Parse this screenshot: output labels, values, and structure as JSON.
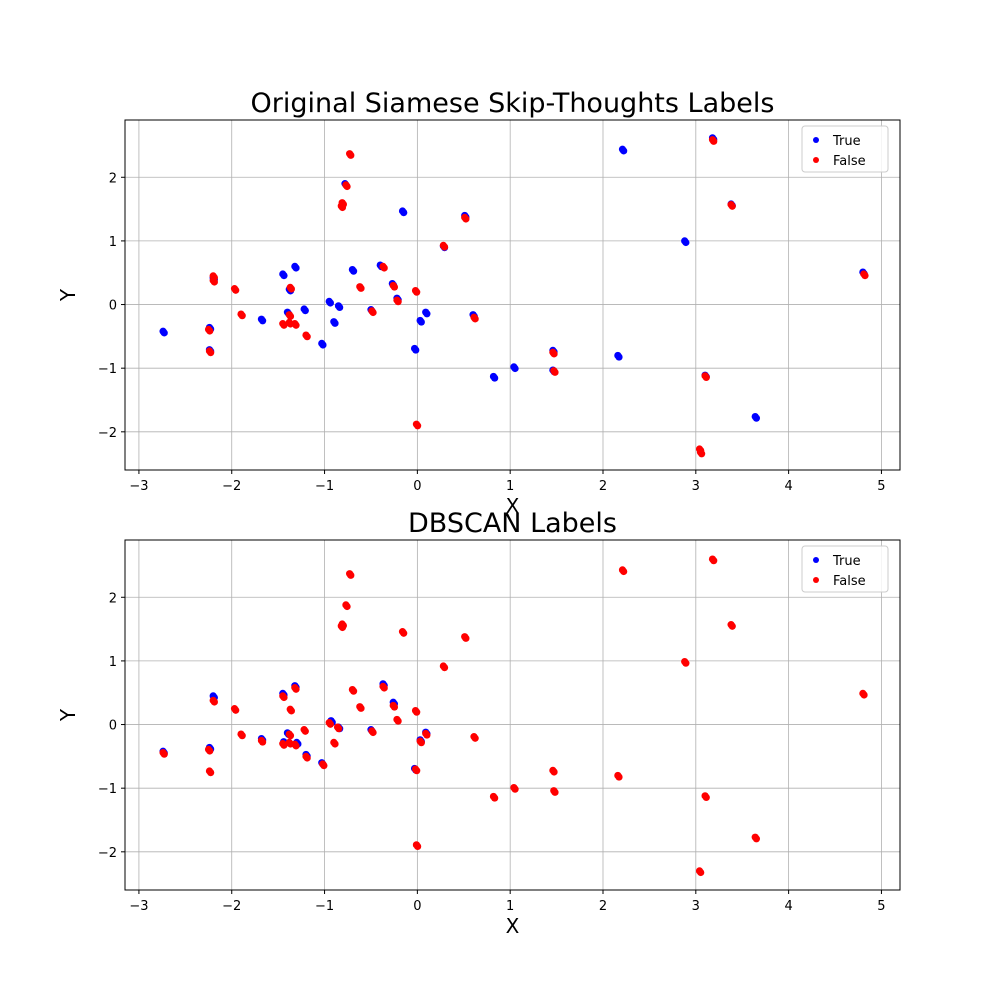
{
  "colors": {
    "true": "#0000ff",
    "false": "#ff0000",
    "grid": "#b0b0b0"
  },
  "chart_data": [
    {
      "type": "scatter",
      "title": "Original Siamese Skip-Thoughts Labels",
      "xlabel": "X",
      "ylabel": "Y",
      "xlim": [
        -3.15,
        5.2
      ],
      "ylim": [
        -2.6,
        2.9
      ],
      "xticks": [
        -3,
        -2,
        -1,
        0,
        1,
        2,
        3,
        4,
        5
      ],
      "yticks": [
        -2,
        -1,
        0,
        1,
        2
      ],
      "grid": true,
      "legend_position": "top-right",
      "series": [
        {
          "name": "True",
          "color": "#0000ff",
          "points": [
            [
              -2.74,
              -0.42
            ],
            [
              -2.24,
              -0.36
            ],
            [
              -2.24,
              -0.71
            ],
            [
              -2.2,
              0.42
            ],
            [
              -1.68,
              -0.23
            ],
            [
              -1.45,
              0.48
            ],
            [
              -1.4,
              -0.12
            ],
            [
              -1.38,
              0.24
            ],
            [
              -1.32,
              0.6
            ],
            [
              -1.22,
              -0.07
            ],
            [
              -1.03,
              -0.61
            ],
            [
              -0.95,
              0.05
            ],
            [
              -0.9,
              -0.27
            ],
            [
              -0.85,
              -0.02
            ],
            [
              -0.78,
              1.9
            ],
            [
              -0.7,
              0.55
            ],
            [
              -0.5,
              -0.08
            ],
            [
              -0.4,
              0.62
            ],
            [
              -0.27,
              0.33
            ],
            [
              -0.22,
              0.1
            ],
            [
              -0.16,
              1.47
            ],
            [
              -0.03,
              -0.69
            ],
            [
              0.03,
              -0.25
            ],
            [
              0.09,
              -0.12
            ],
            [
              0.28,
              0.92
            ],
            [
              0.51,
              1.4
            ],
            [
              0.6,
              -0.16
            ],
            [
              0.82,
              -1.13
            ],
            [
              1.04,
              -0.98
            ],
            [
              1.46,
              -0.72
            ],
            [
              1.46,
              -1.03
            ],
            [
              2.16,
              -0.8
            ],
            [
              2.21,
              2.44
            ],
            [
              2.88,
              1.0
            ],
            [
              3.1,
              -1.11
            ],
            [
              3.18,
              2.62
            ],
            [
              3.38,
              1.58
            ],
            [
              3.64,
              -1.76
            ],
            [
              4.8,
              0.51
            ]
          ]
        },
        {
          "name": "False",
          "color": "#ff0000",
          "points": [
            [
              -2.25,
              -0.39
            ],
            [
              -2.24,
              -0.73
            ],
            [
              -2.2,
              0.38
            ],
            [
              -2.2,
              0.45
            ],
            [
              -1.97,
              0.25
            ],
            [
              -1.9,
              -0.15
            ],
            [
              -1.45,
              -0.3
            ],
            [
              -1.38,
              -0.28
            ],
            [
              -1.38,
              -0.16
            ],
            [
              -1.37,
              0.27
            ],
            [
              -1.32,
              -0.3
            ],
            [
              -1.2,
              -0.48
            ],
            [
              -0.82,
              1.55
            ],
            [
              -0.81,
              1.6
            ],
            [
              -0.77,
              1.88
            ],
            [
              -0.73,
              2.37
            ],
            [
              -0.62,
              0.28
            ],
            [
              -0.49,
              -0.1
            ],
            [
              -0.37,
              0.6
            ],
            [
              -0.26,
              0.3
            ],
            [
              -0.22,
              0.07
            ],
            [
              -0.02,
              0.22
            ],
            [
              -0.01,
              -1.88
            ],
            [
              0.28,
              0.93
            ],
            [
              0.51,
              1.37
            ],
            [
              0.61,
              -0.2
            ],
            [
              1.46,
              -0.75
            ],
            [
              1.47,
              -1.04
            ],
            [
              3.04,
              -2.27
            ],
            [
              3.05,
              -2.32
            ],
            [
              3.1,
              -1.12
            ],
            [
              3.18,
              2.59
            ],
            [
              3.38,
              1.57
            ],
            [
              4.81,
              0.48
            ]
          ]
        }
      ]
    },
    {
      "type": "scatter",
      "title": "DBSCAN Labels",
      "xlabel": "X",
      "ylabel": "Y",
      "xlim": [
        -3.15,
        5.2
      ],
      "ylim": [
        -2.6,
        2.9
      ],
      "xticks": [
        -3,
        -2,
        -1,
        0,
        1,
        2,
        3,
        4,
        5
      ],
      "yticks": [
        -2,
        -1,
        0,
        1,
        2
      ],
      "grid": true,
      "legend_position": "top-right",
      "series": [
        {
          "name": "True",
          "color": "#0000ff",
          "points": [
            [
              -2.74,
              -0.42
            ],
            [
              -2.24,
              -0.36
            ],
            [
              -2.2,
              0.45
            ],
            [
              -1.68,
              -0.22
            ],
            [
              -1.45,
              0.49
            ],
            [
              -1.44,
              -0.27
            ],
            [
              -1.4,
              -0.13
            ],
            [
              -1.32,
              0.61
            ],
            [
              -1.3,
              -0.28
            ],
            [
              -1.2,
              -0.47
            ],
            [
              -1.03,
              -0.6
            ],
            [
              -0.93,
              0.06
            ],
            [
              -0.85,
              -0.04
            ],
            [
              -0.5,
              -0.08
            ],
            [
              -0.37,
              0.64
            ],
            [
              -0.26,
              0.35
            ],
            [
              -0.03,
              -0.69
            ],
            [
              0.03,
              -0.24
            ],
            [
              0.09,
              -0.12
            ]
          ]
        },
        {
          "name": "False",
          "color": "#ff0000",
          "points": [
            [
              -2.74,
              -0.44
            ],
            [
              -2.25,
              -0.39
            ],
            [
              -2.24,
              -0.73
            ],
            [
              -2.2,
              0.38
            ],
            [
              -1.97,
              0.25
            ],
            [
              -1.9,
              -0.15
            ],
            [
              -1.68,
              -0.25
            ],
            [
              -1.45,
              -0.3
            ],
            [
              -1.45,
              0.45
            ],
            [
              -1.38,
              -0.28
            ],
            [
              -1.38,
              -0.15
            ],
            [
              -1.37,
              0.24
            ],
            [
              -1.32,
              0.58
            ],
            [
              -1.32,
              -0.31
            ],
            [
              -1.22,
              -0.08
            ],
            [
              -1.2,
              -0.5
            ],
            [
              -1.02,
              -0.62
            ],
            [
              -0.95,
              0.03
            ],
            [
              -0.9,
              -0.28
            ],
            [
              -0.86,
              -0.04
            ],
            [
              -0.82,
              1.55
            ],
            [
              -0.81,
              1.58
            ],
            [
              -0.77,
              1.88
            ],
            [
              -0.73,
              2.37
            ],
            [
              -0.7,
              0.55
            ],
            [
              -0.62,
              0.28
            ],
            [
              -0.49,
              -0.1
            ],
            [
              -0.37,
              0.6
            ],
            [
              -0.26,
              0.3
            ],
            [
              -0.22,
              0.08
            ],
            [
              -0.16,
              1.46
            ],
            [
              -0.02,
              0.22
            ],
            [
              -0.02,
              -0.7
            ],
            [
              -0.01,
              -1.89
            ],
            [
              0.03,
              -0.26
            ],
            [
              0.09,
              -0.14
            ],
            [
              0.28,
              0.92
            ],
            [
              0.51,
              1.38
            ],
            [
              0.61,
              -0.19
            ],
            [
              0.82,
              -1.13
            ],
            [
              1.04,
              -0.99
            ],
            [
              1.46,
              -0.72
            ],
            [
              1.47,
              -1.04
            ],
            [
              2.16,
              -0.8
            ],
            [
              2.21,
              2.43
            ],
            [
              2.88,
              0.99
            ],
            [
              3.04,
              -2.3
            ],
            [
              3.1,
              -1.12
            ],
            [
              3.18,
              2.6
            ],
            [
              3.38,
              1.57
            ],
            [
              3.64,
              -1.77
            ],
            [
              4.8,
              0.49
            ]
          ]
        }
      ]
    }
  ]
}
